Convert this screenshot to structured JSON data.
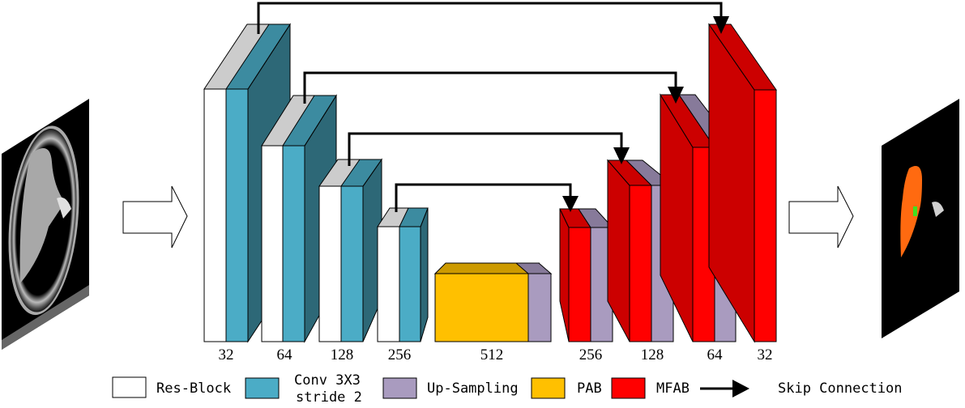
{
  "figure": {
    "input_image": "mri-slice-input",
    "output_image": "segmentation-output",
    "encoder_channels": [
      "32",
      "64",
      "128",
      "256"
    ],
    "bottleneck_channels": "512",
    "decoder_channels": [
      "256",
      "128",
      "64",
      "32"
    ]
  },
  "legend": {
    "items": [
      {
        "label": "Res-Block",
        "color": "#ffffff"
      },
      {
        "label_line1": "Conv 3X3",
        "label_line2": "stride 2",
        "color": "#4bacc6"
      },
      {
        "label": "Up-Sampling",
        "color": "#a99bbf"
      },
      {
        "label": "PAB",
        "color": "#ffc000"
      },
      {
        "label": "MFAB",
        "color": "#ff0000"
      },
      {
        "label": "Skip Connection",
        "icon": "arrow-right-icon"
      }
    ]
  },
  "colors": {
    "res_block": "#ffffff",
    "res_block_top": "#cccccc",
    "conv": "#4bacc6",
    "conv_top": "#3c8ba0",
    "conv_side": "#2d6877",
    "upsampling": "#a99bbf",
    "upsampling_top": "#877a9a",
    "pab": "#ffc000",
    "pab_top": "#cc9a00",
    "mfab": "#ff0000",
    "mfab_dark": "#cc0000",
    "segmentation_orange": "#ff6a10",
    "segmentation_green": "#40e020"
  }
}
